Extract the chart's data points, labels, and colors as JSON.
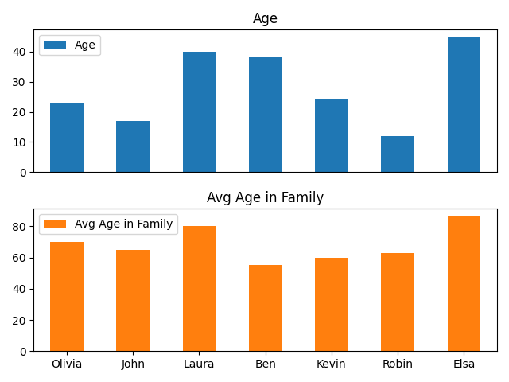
{
  "names": [
    "Olivia",
    "John",
    "Laura",
    "Ben",
    "Kevin",
    "Robin",
    "Elsa"
  ],
  "age": [
    23,
    17,
    40,
    38,
    24,
    12,
    45
  ],
  "avg_age_in_family": [
    70,
    65,
    80,
    55,
    60,
    63,
    87
  ],
  "bar_color_age": "#1f77b4",
  "bar_color_avg": "#ff7f0e",
  "title_age": "Age",
  "title_avg": "Avg Age in Family",
  "legend_age": "Age",
  "legend_avg": "Avg Age in Family",
  "figsize": [
    6.4,
    4.8
  ],
  "dpi": 100
}
